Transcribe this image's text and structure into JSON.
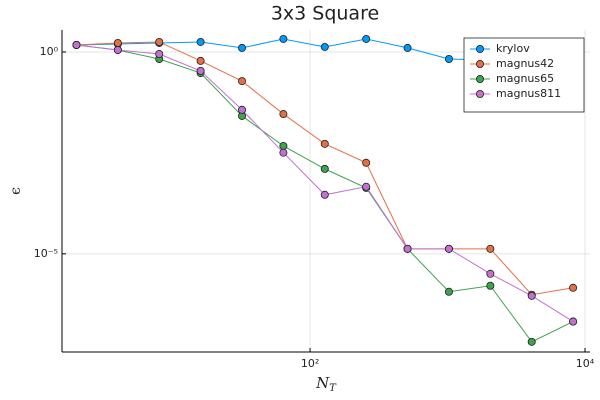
{
  "chart_data": {
    "type": "line",
    "title": "3x3 Square",
    "x_label": "N_T",
    "y_label": "ϵ",
    "log_x": true,
    "log_y": true,
    "grid": true,
    "legend": "top-right",
    "xlim": [
      1.57,
      10870
    ],
    "ylim": [
      3.7e-08,
      3.5
    ],
    "xticks": [
      {
        "value": 100,
        "label": "10²"
      },
      {
        "value": 10000,
        "label": "10⁴"
      }
    ],
    "yticks": [
      {
        "value": 1,
        "label": "10⁰"
      },
      {
        "value": 1e-05,
        "label": "10⁻⁵"
      }
    ],
    "x": [
      2,
      4,
      8,
      16,
      32,
      64,
      128,
      256,
      512,
      1024,
      2048,
      4096,
      8192
    ],
    "series": [
      {
        "name": "krylov",
        "color": "#009af9",
        "values": [
          1.49,
          1.58,
          1.67,
          1.77,
          1.26,
          2.1,
          1.33,
          2.1,
          1.26,
          0.67,
          0.63,
          0.2,
          0.082
        ]
      },
      {
        "name": "magnus42",
        "color": "#e26f46",
        "values": [
          1.49,
          1.67,
          1.77,
          0.6,
          0.19,
          0.029,
          0.0053,
          0.0018,
          1.33e-05,
          1.33e-05,
          1.33e-05,
          9.7e-07,
          1.44e-06
        ]
      },
      {
        "name": "magnus65",
        "color": "#3da44d",
        "values": [
          1.49,
          1.12,
          0.67,
          0.3,
          0.026,
          0.0047,
          0.00127,
          0.00043,
          1.33e-05,
          1.15e-06,
          1.62e-06,
          6.6e-08,
          2.1e-07
        ]
      },
      {
        "name": "magnus811",
        "color": "#c271d2",
        "values": [
          1.49,
          1.12,
          0.89,
          0.34,
          0.037,
          0.0032,
          0.00029,
          0.00046,
          1.33e-05,
          1.33e-05,
          3.2e-06,
          9.1e-07,
          2.1e-07
        ]
      }
    ]
  }
}
